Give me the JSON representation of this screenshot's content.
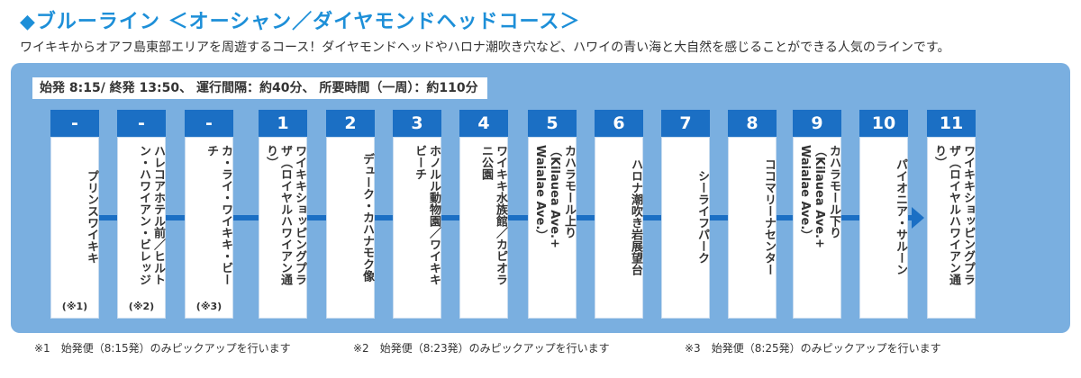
{
  "title": "◆ブルーライン ＜オーシャン／ダイヤモンドヘッドコース＞",
  "description": "ワイキキからオアフ島東部エリアを周遊するコース！ダイヤモンドヘッドやハロナ潮吹き穴など、ハワイの青い海と大自然を感じることができる人気のラインです。",
  "schedule": "始発 8:15/ 終発 13:50、 運行間隔：約40分、 所要時間（一周）：約110分",
  "stops": [
    {
      "num": "-",
      "name": "プリンスワイキキ",
      "note": "(※1)"
    },
    {
      "num": "-",
      "name": "ハレコアホテル前／ヒルトン・ハワイアン・ビレッジ",
      "note": "(※2)"
    },
    {
      "num": "-",
      "name": "カ・ライ・ワイキキ・ビーチ",
      "note": "(※3)"
    },
    {
      "num": "1",
      "name": "ワイキキショッピングプラザ（ロイヤルハワイアン通り）",
      "note": ""
    },
    {
      "num": "2",
      "name": "デューク・カハナモク像",
      "note": ""
    },
    {
      "num": "3",
      "name": "ホノルル動物園／ワイキキビーチ",
      "note": ""
    },
    {
      "num": "4",
      "name": "ワイキキ水族館／カピオラニ公園",
      "note": ""
    },
    {
      "num": "5",
      "name": "カハラモール上り（Kilauea Ave.+ Waialae Ave.）",
      "note": ""
    },
    {
      "num": "6",
      "name": "ハロナ潮吹き岩展望台",
      "note": ""
    },
    {
      "num": "7",
      "name": "シーライフパーク",
      "note": ""
    },
    {
      "num": "8",
      "name": "ココマリーナセンター",
      "note": ""
    },
    {
      "num": "9",
      "name": "カハラモール下り（Kilauea Ave.+ Waialae Ave.）",
      "note": ""
    },
    {
      "num": "10",
      "name": "パイオニア・サルーン",
      "note": ""
    },
    {
      "num": "11",
      "name": "ワイキキショッピングプラザ（ロイヤルハワイアン通り）",
      "note": ""
    }
  ],
  "footnotes": [
    "※1　始発便（8:15発）のみピックアップを行います",
    "※2　始発便（8:23発）のみピックアップを行います",
    "※3　始発便（8:25発）のみピックアップを行います"
  ],
  "colors": {
    "accent": "#1d8fd8",
    "panel": "#7aafe0",
    "route": "#1b6fc4"
  }
}
